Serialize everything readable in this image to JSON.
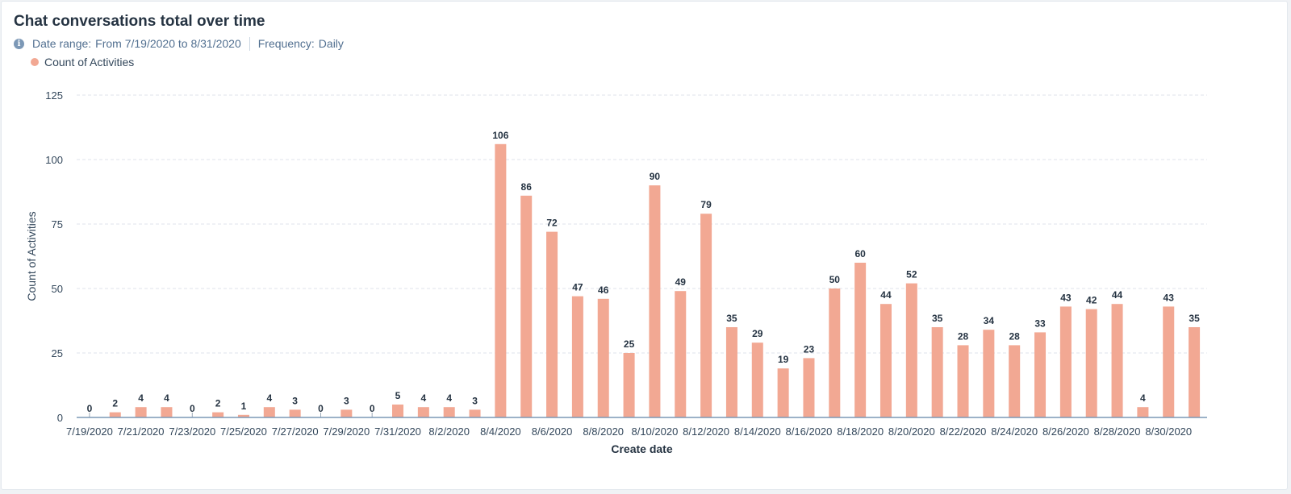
{
  "report": {
    "title": "Chat conversations total over time",
    "date_range_label": "Date range:",
    "date_range_value": "From 7/19/2020 to 8/31/2020",
    "frequency_label": "Frequency:",
    "frequency_value": "Daily"
  },
  "colors": {
    "bar": "#f2a893",
    "grid": "#dfe3eb",
    "axis_text": "#33475b",
    "label_text": "#253342"
  },
  "chart_data": {
    "type": "bar",
    "xlabel": "Create date",
    "ylabel": "Count of Activities",
    "ylim": [
      0,
      125
    ],
    "yticks": [
      0,
      25,
      50,
      75,
      100,
      125
    ],
    "grid": true,
    "legend_position": "top-left",
    "categories": [
      "7/19/2020",
      "7/20/2020",
      "7/21/2020",
      "7/22/2020",
      "7/23/2020",
      "7/24/2020",
      "7/25/2020",
      "7/26/2020",
      "7/27/2020",
      "7/28/2020",
      "7/29/2020",
      "7/30/2020",
      "7/31/2020",
      "8/1/2020",
      "8/2/2020",
      "8/3/2020",
      "8/4/2020",
      "8/5/2020",
      "8/6/2020",
      "8/7/2020",
      "8/8/2020",
      "8/9/2020",
      "8/10/2020",
      "8/11/2020",
      "8/12/2020",
      "8/13/2020",
      "8/14/2020",
      "8/15/2020",
      "8/16/2020",
      "8/17/2020",
      "8/18/2020",
      "8/19/2020",
      "8/20/2020",
      "8/21/2020",
      "8/22/2020",
      "8/23/2020",
      "8/24/2020",
      "8/25/2020",
      "8/26/2020",
      "8/27/2020",
      "8/28/2020",
      "8/29/2020",
      "8/30/2020",
      "8/31/2020"
    ],
    "shown_tick_labels": [
      "7/19/2020",
      "7/21/2020",
      "7/23/2020",
      "7/25/2020",
      "7/27/2020",
      "7/29/2020",
      "7/31/2020",
      "8/2/2020",
      "8/4/2020",
      "8/6/2020",
      "8/8/2020",
      "8/10/2020",
      "8/12/2020",
      "8/14/2020",
      "8/16/2020",
      "8/18/2020",
      "8/20/2020",
      "8/22/2020",
      "8/24/2020",
      "8/26/2020",
      "8/28/2020",
      "8/30/2020"
    ],
    "series": [
      {
        "name": "Count of Activities",
        "values": [
          0,
          2,
          4,
          4,
          0,
          2,
          1,
          4,
          3,
          0,
          3,
          0,
          5,
          4,
          4,
          3,
          106,
          86,
          72,
          47,
          46,
          25,
          90,
          49,
          79,
          35,
          29,
          19,
          23,
          50,
          60,
          44,
          52,
          35,
          28,
          34,
          28,
          33,
          43,
          42,
          44,
          4,
          43,
          35
        ]
      }
    ]
  }
}
